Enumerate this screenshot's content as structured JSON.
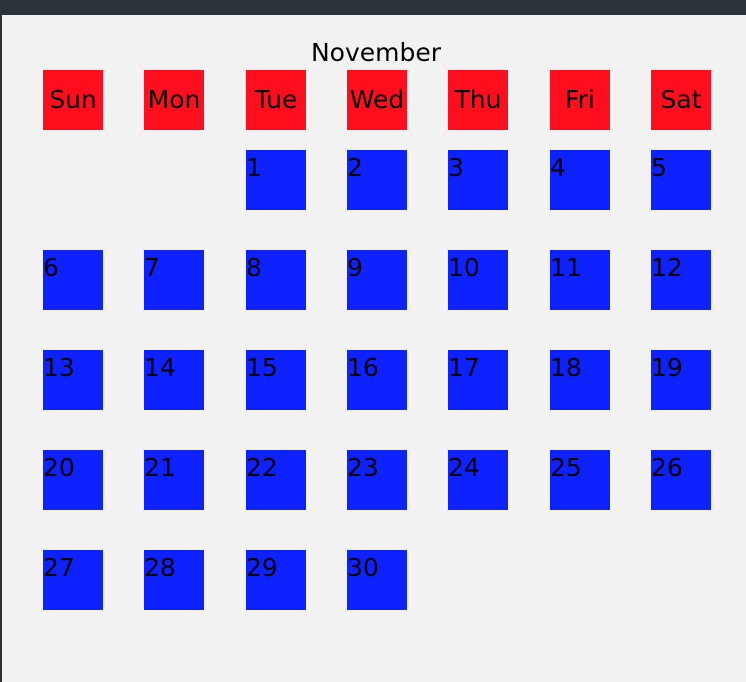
{
  "calendar": {
    "month": "November",
    "weekdays": [
      "Sun",
      "Mon",
      "Tue",
      "Wed",
      "Thu",
      "Fri",
      "Sat"
    ],
    "first_weekday_index": 2,
    "days_in_month": 30,
    "days": [
      "1",
      "2",
      "3",
      "4",
      "5",
      "6",
      "7",
      "8",
      "9",
      "10",
      "11",
      "12",
      "13",
      "14",
      "15",
      "16",
      "17",
      "18",
      "19",
      "20",
      "21",
      "22",
      "23",
      "24",
      "25",
      "26",
      "27",
      "28",
      "29",
      "30"
    ]
  },
  "colors": {
    "header_cell": "#ff0f1e",
    "day_cell": "#0d22ff",
    "background": "#f2f2f2",
    "title_bar": "#2b343b"
  }
}
